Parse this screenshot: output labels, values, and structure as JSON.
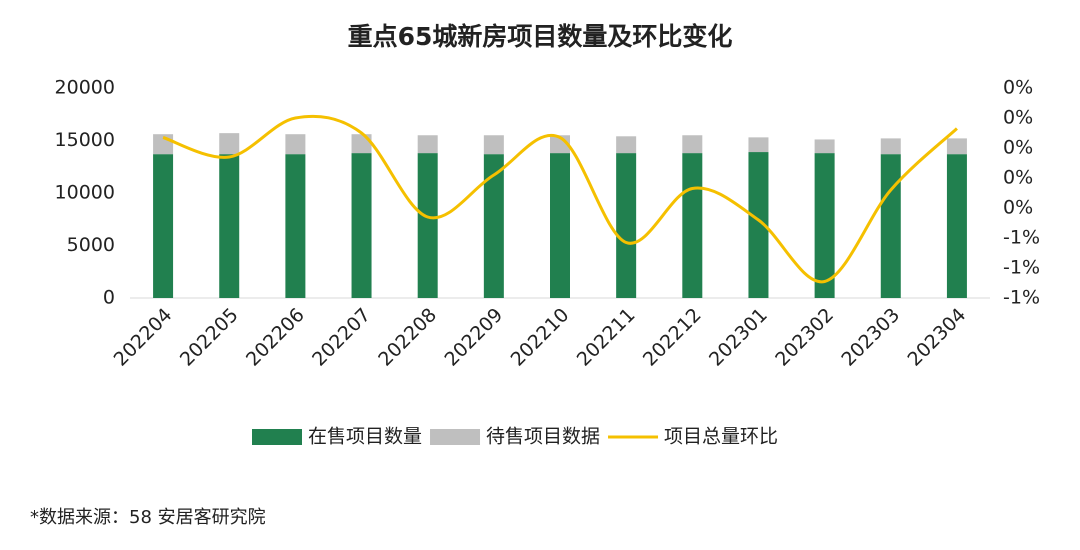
{
  "chart_data": {
    "type": "bar",
    "stacked": true,
    "title": "重点65城新房项目数量及环比变化",
    "categories": [
      "202204",
      "202205",
      "202206",
      "202207",
      "202208",
      "202209",
      "202210",
      "202211",
      "202212",
      "202301",
      "202302",
      "202303",
      "202304"
    ],
    "series": [
      {
        "name": "在售项目数量",
        "type": "bar",
        "color": "#21804f",
        "values": [
          13700,
          13700,
          13700,
          13800,
          13800,
          13700,
          13800,
          13800,
          13800,
          13900,
          13800,
          13700,
          13700
        ]
      },
      {
        "name": "待售项目数据",
        "type": "bar",
        "color": "#bfbfbf",
        "values": [
          1900,
          2000,
          1900,
          1800,
          1700,
          1800,
          1700,
          1600,
          1700,
          1400,
          1300,
          1500,
          1500
        ]
      },
      {
        "name": "项目总量环比",
        "type": "line",
        "axis": "y2",
        "color": "#f5c000",
        "values": [
          0.07,
          -0.06,
          0.2,
          0.1,
          -0.46,
          -0.18,
          0.07,
          -0.63,
          -0.27,
          -0.48,
          -0.89,
          -0.28,
          0.13
        ]
      }
    ],
    "ylim": [
      0,
      20000
    ],
    "yticks": [
      0,
      5000,
      10000,
      15000,
      20000
    ],
    "y2lim": [
      -1.0,
      0.4
    ],
    "y2ticks": [
      {
        "value": 0.4,
        "label": "0%"
      },
      {
        "value": 0.2,
        "label": "0%"
      },
      {
        "value": 0,
        "label": "0%"
      },
      {
        "value": -0.2,
        "label": "0%"
      },
      {
        "value": -0.4,
        "label": "0%"
      },
      {
        "value": -0.6,
        "label": "-1%"
      },
      {
        "value": -0.8,
        "label": "-1%"
      },
      {
        "value": -1.0,
        "label": "-1%"
      }
    ],
    "grid": false,
    "source": "*数据来源：58 安居客研究院"
  }
}
